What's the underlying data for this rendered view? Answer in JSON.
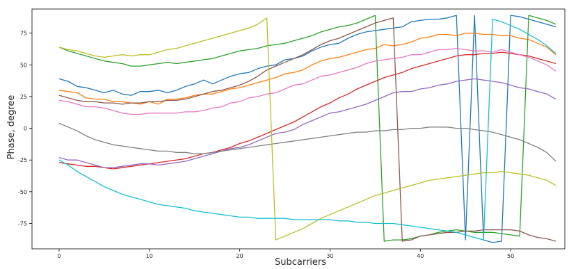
{
  "chart_data": {
    "type": "line",
    "title": "",
    "xlabel": "Subcarriers",
    "ylabel": "Phase, degree",
    "xlim": [
      -3,
      56
    ],
    "ylim": [
      -95,
      94
    ],
    "x_ticks": [
      0,
      10,
      20,
      30,
      40,
      50
    ],
    "y_ticks": [
      -75,
      -50,
      -25,
      0,
      25,
      50,
      75
    ],
    "grid": false,
    "legend": "none",
    "x": [
      0,
      1,
      2,
      3,
      4,
      5,
      6,
      7,
      8,
      9,
      10,
      11,
      12,
      13,
      14,
      15,
      16,
      17,
      18,
      19,
      20,
      21,
      22,
      23,
      24,
      25,
      26,
      27,
      28,
      29,
      30,
      31,
      32,
      33,
      34,
      35,
      36,
      37,
      38,
      39,
      40,
      41,
      42,
      43,
      44,
      45,
      46,
      47,
      48,
      49,
      50,
      51,
      52,
      53,
      54,
      55
    ],
    "series": [
      {
        "color": "#1f77b4",
        "values": [
          39,
          37,
          33,
          32,
          30,
          28,
          30,
          27,
          26,
          29,
          29,
          30,
          28,
          30,
          33,
          35,
          38,
          35,
          38,
          41,
          43,
          44,
          47,
          49,
          50,
          54,
          55,
          57,
          61,
          64,
          66,
          67,
          71,
          74,
          76,
          77,
          78,
          79,
          80,
          84,
          85,
          86,
          86,
          87,
          89,
          -88,
          89,
          -88,
          -90,
          -89,
          89,
          88,
          86,
          84,
          82,
          80
        ]
      },
      {
        "color": "#ff7f0e",
        "values": [
          30,
          29,
          28,
          24,
          23,
          23,
          21,
          21,
          20,
          19,
          21,
          19,
          23,
          23,
          24,
          26,
          27,
          27,
          29,
          31,
          32,
          34,
          36,
          38,
          40,
          43,
          44,
          46,
          50,
          53,
          55,
          56,
          58,
          60,
          62,
          63,
          66,
          65,
          66,
          68,
          71,
          72,
          74,
          74,
          73,
          75,
          75,
          74,
          74,
          73,
          73,
          71,
          70,
          67,
          64,
          58
        ]
      },
      {
        "color": "#2ca02c",
        "values": [
          64,
          61,
          59,
          57,
          55,
          53,
          52,
          51,
          49,
          49,
          50,
          51,
          52,
          51,
          52,
          53,
          54,
          55,
          57,
          59,
          61,
          62,
          63,
          65,
          66,
          67,
          69,
          71,
          73,
          76,
          78,
          80,
          81,
          83,
          86,
          89,
          -89,
          -88,
          -88,
          -87,
          -85,
          -84,
          -82,
          -81,
          -80,
          -81,
          -82,
          -82,
          -82,
          -83,
          -84,
          -85,
          89,
          87,
          85,
          82
        ]
      },
      {
        "color": "#d62728",
        "values": [
          -27,
          -28,
          -29,
          -30,
          -30,
          -31,
          -32,
          -31,
          -30,
          -29,
          -28,
          -27,
          -26,
          -25,
          -24,
          -22,
          -20,
          -19,
          -17,
          -15,
          -12,
          -10,
          -7,
          -4,
          -1,
          2,
          5,
          9,
          13,
          17,
          20,
          24,
          27,
          31,
          34,
          37,
          40,
          42,
          44,
          47,
          49,
          51,
          53,
          55,
          57,
          58,
          58,
          59,
          59,
          60,
          59,
          58,
          57,
          55,
          53,
          51
        ]
      },
      {
        "color": "#9467bd",
        "values": [
          -23,
          -25,
          -25,
          -27,
          -29,
          -31,
          -31,
          -30,
          -29,
          -28,
          -28,
          -29,
          -28,
          -27,
          -26,
          -24,
          -22,
          -20,
          -18,
          -16,
          -15,
          -13,
          -10,
          -7,
          -4,
          -3,
          -1,
          3,
          6,
          9,
          12,
          13,
          15,
          17,
          19,
          22,
          25,
          28,
          29,
          29,
          31,
          32,
          34,
          35,
          37,
          38,
          39,
          38,
          37,
          36,
          34,
          32,
          31,
          29,
          27,
          23
        ]
      },
      {
        "color": "#8c564b",
        "values": [
          26,
          24,
          22,
          21,
          21,
          20,
          20,
          19,
          20,
          20,
          21,
          21,
          22,
          22,
          23,
          25,
          27,
          29,
          30,
          32,
          34,
          37,
          41,
          46,
          49,
          52,
          55,
          58,
          62,
          66,
          69,
          71,
          74,
          77,
          80,
          83,
          85,
          87,
          -89,
          -88,
          -85,
          -84,
          -83,
          -82,
          -82,
          -81,
          -81,
          -80,
          -80,
          -80,
          -80,
          -81,
          -84,
          -86,
          -87,
          -89
        ]
      },
      {
        "color": "#e377c2",
        "values": [
          22,
          21,
          19,
          17,
          17,
          16,
          14,
          12,
          11,
          11,
          12,
          12,
          12,
          12,
          13,
          13,
          14,
          16,
          17,
          20,
          21,
          24,
          25,
          27,
          28,
          31,
          34,
          35,
          38,
          41,
          42,
          44,
          46,
          48,
          51,
          53,
          54,
          55,
          56,
          58,
          58,
          60,
          62,
          62,
          63,
          62,
          61,
          61,
          60,
          62,
          60,
          58,
          56,
          53,
          50,
          45
        ]
      },
      {
        "color": "#7f7f7f",
        "values": [
          4,
          1,
          -2,
          -6,
          -9,
          -11,
          -13,
          -14,
          -15,
          -16,
          -17,
          -18,
          -18,
          -19,
          -19,
          -20,
          -20,
          -19,
          -18,
          -17,
          -16,
          -15,
          -14,
          -13,
          -12,
          -11,
          -10,
          -9,
          -8,
          -7,
          -6,
          -5,
          -4,
          -3,
          -3,
          -2,
          -2,
          -1,
          -1,
          0,
          0,
          1,
          1,
          1,
          0,
          0,
          -1,
          -2,
          -3,
          -5,
          -7,
          -9,
          -12,
          -15,
          -19,
          -26
        ]
      },
      {
        "color": "#bcbd22",
        "values": [
          64,
          62,
          61,
          59,
          57,
          56,
          57,
          58,
          57,
          58,
          58,
          60,
          62,
          63,
          65,
          67,
          69,
          71,
          73,
          75,
          77,
          79,
          82,
          87,
          -88,
          -85,
          -82,
          -79,
          -75,
          -71,
          -68,
          -65,
          -62,
          -59,
          -56,
          -53,
          -51,
          -49,
          -47,
          -45,
          -43,
          -41,
          -40,
          -39,
          -38,
          -37,
          -36,
          -35,
          -35,
          -34,
          -35,
          -36,
          -37,
          -39,
          -41,
          -45
        ]
      },
      {
        "color": "#17becf",
        "values": [
          -25,
          -29,
          -34,
          -38,
          -42,
          -46,
          -49,
          -52,
          -54,
          -56,
          -58,
          -60,
          -61,
          -62,
          -63,
          -65,
          -66,
          -67,
          -68,
          -69,
          -70,
          -70,
          -71,
          -71,
          -71,
          -71,
          -72,
          -72,
          -72,
          -72,
          -72,
          -73,
          -73,
          -74,
          -74,
          -75,
          -75,
          -75,
          -76,
          -77,
          -78,
          -79,
          -80,
          -81,
          -82,
          -84,
          -86,
          -88,
          86,
          84,
          81,
          78,
          74,
          70,
          65,
          59
        ]
      }
    ]
  }
}
